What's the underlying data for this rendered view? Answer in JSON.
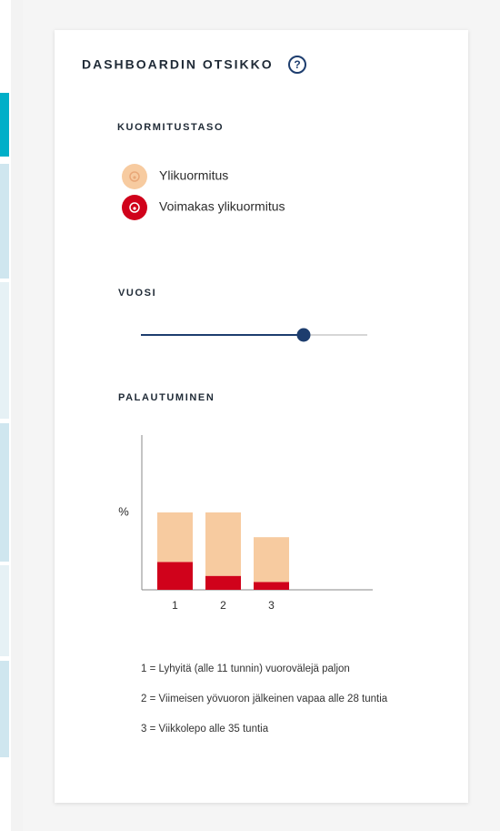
{
  "header": {
    "title": "DASHBOARDIN OTSIKKO"
  },
  "legend": {
    "title": "KUORMITUSTASO"
  },
  "slider": {
    "title": "VUOSI"
  },
  "chart_data": {
    "type": "bar",
    "title": "PALAUTUMINEN",
    "y_label": "%",
    "stacked": true,
    "categories": [
      "1",
      "2",
      "3"
    ],
    "ylim": [
      0,
      100
    ],
    "series": [
      {
        "name": "Voimakas ylikuormitus",
        "color": "#d0021b",
        "values": [
          18,
          9,
          5
        ]
      },
      {
        "name": "Ylikuormitus",
        "color": "#f7cba0",
        "values": [
          32,
          41,
          29
        ]
      }
    ]
  },
  "notes": [
    "1 = Lyhyitä (alle 11 tunnin) vuorovälejä paljon",
    "2 = Viimeisen yövuoron jälkeinen vapaa alle 28 tuntia",
    "3 = Viikkolepo alle 35 tuntia"
  ]
}
